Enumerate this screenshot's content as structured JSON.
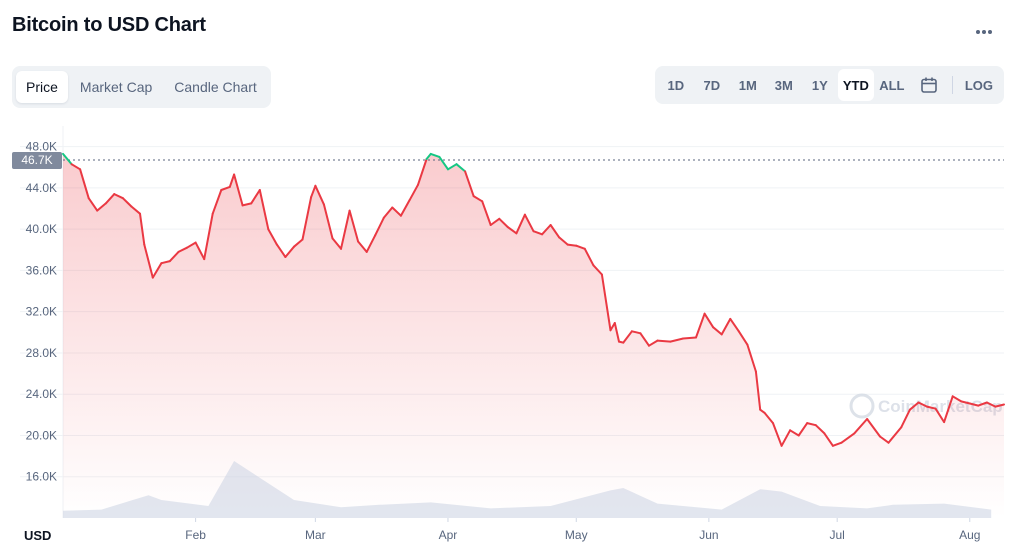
{
  "header": {
    "title": "Bitcoin to USD Chart",
    "more_icon": "more-horizontal-icon"
  },
  "tabs": [
    {
      "label": "Price",
      "active": true
    },
    {
      "label": "Market Cap",
      "active": false
    },
    {
      "label": "Candle Chart",
      "active": false
    }
  ],
  "ranges": [
    {
      "label": "1D",
      "active": false
    },
    {
      "label": "7D",
      "active": false
    },
    {
      "label": "1M",
      "active": false
    },
    {
      "label": "3M",
      "active": false
    },
    {
      "label": "1Y",
      "active": false
    },
    {
      "label": "YTD",
      "active": true
    },
    {
      "label": "ALL",
      "active": false
    }
  ],
  "calendar_icon": "calendar-icon",
  "log_label": "LOG",
  "watermark": "CoinMarketCap",
  "colors": {
    "line_down": "#ea3943",
    "line_up": "#16c784",
    "area_top": "#ea3943",
    "grid": "#eff2f5",
    "current_price_bg": "#808a9d",
    "volume": "#cfd6e4"
  },
  "chart_data": {
    "type": "line",
    "currency_label": "USD",
    "current_price_label": "46.7K",
    "current_price": 46700,
    "ylim": [
      12000,
      50000
    ],
    "y_ticks": [
      16000,
      20000,
      24000,
      28000,
      32000,
      36000,
      40000,
      44000,
      48000
    ],
    "y_tick_labels": [
      "16.0K",
      "20.0K",
      "24.0K",
      "28.0K",
      "32.0K",
      "36.0K",
      "40.0K",
      "44.0K",
      "48.0K"
    ],
    "x_range": [
      "2022-01-01",
      "2022-08-09"
    ],
    "x_ticks": [
      {
        "label": "Feb",
        "date": "2022-02-01"
      },
      {
        "label": "Mar",
        "date": "2022-03-01"
      },
      {
        "label": "Apr",
        "date": "2022-04-01"
      },
      {
        "label": "May",
        "date": "2022-05-01"
      },
      {
        "label": "Jun",
        "date": "2022-06-01"
      },
      {
        "label": "Jul",
        "date": "2022-07-01"
      },
      {
        "label": "Aug",
        "date": "2022-08-01"
      }
    ],
    "grid": true,
    "series": [
      {
        "dates": [
          "2022-01-01",
          "2022-01-03",
          "2022-01-05",
          "2022-01-07",
          "2022-01-09",
          "2022-01-11",
          "2022-01-13",
          "2022-01-15",
          "2022-01-17",
          "2022-01-19",
          "2022-01-20",
          "2022-01-22",
          "2022-01-24",
          "2022-01-26",
          "2022-01-28",
          "2022-01-30",
          "2022-02-01",
          "2022-02-03",
          "2022-02-05",
          "2022-02-07",
          "2022-02-09",
          "2022-02-10",
          "2022-02-12",
          "2022-02-14",
          "2022-02-16",
          "2022-02-18",
          "2022-02-20",
          "2022-02-22",
          "2022-02-24",
          "2022-02-26",
          "2022-02-28",
          "2022-03-01",
          "2022-03-03",
          "2022-03-05",
          "2022-03-07",
          "2022-03-09",
          "2022-03-11",
          "2022-03-13",
          "2022-03-15",
          "2022-03-17",
          "2022-03-19",
          "2022-03-21",
          "2022-03-23",
          "2022-03-25",
          "2022-03-27",
          "2022-03-28",
          "2022-03-30",
          "2022-04-01",
          "2022-04-03",
          "2022-04-05",
          "2022-04-07",
          "2022-04-09",
          "2022-04-11",
          "2022-04-13",
          "2022-04-15",
          "2022-04-17",
          "2022-04-19",
          "2022-04-21",
          "2022-04-23",
          "2022-04-25",
          "2022-04-27",
          "2022-04-29",
          "2022-05-01",
          "2022-05-03",
          "2022-05-05",
          "2022-05-07",
          "2022-05-09",
          "2022-05-10",
          "2022-05-11",
          "2022-05-12",
          "2022-05-14",
          "2022-05-16",
          "2022-05-18",
          "2022-05-20",
          "2022-05-23",
          "2022-05-26",
          "2022-05-29",
          "2022-05-31",
          "2022-06-02",
          "2022-06-04",
          "2022-06-06",
          "2022-06-08",
          "2022-06-10",
          "2022-06-12",
          "2022-06-13",
          "2022-06-14",
          "2022-06-16",
          "2022-06-18",
          "2022-06-20",
          "2022-06-22",
          "2022-06-24",
          "2022-06-26",
          "2022-06-28",
          "2022-06-30",
          "2022-07-02",
          "2022-07-05",
          "2022-07-08",
          "2022-07-11",
          "2022-07-13",
          "2022-07-16",
          "2022-07-18",
          "2022-07-20",
          "2022-07-22",
          "2022-07-24",
          "2022-07-26",
          "2022-07-28",
          "2022-07-30",
          "2022-08-01",
          "2022-08-03",
          "2022-08-05",
          "2022-08-07",
          "2022-08-09"
        ],
        "values": [
          47300,
          46300,
          45800,
          43000,
          41800,
          42500,
          43400,
          43000,
          42200,
          41500,
          38500,
          35300,
          36700,
          36900,
          37800,
          38200,
          38700,
          37100,
          41500,
          43800,
          44100,
          45300,
          42300,
          42500,
          43800,
          40000,
          38500,
          37300,
          38300,
          39000,
          43100,
          44200,
          42400,
          39100,
          38100,
          41800,
          38800,
          37800,
          39400,
          41100,
          42100,
          41300,
          42800,
          44300,
          46800,
          47300,
          47000,
          45800,
          46300,
          45600,
          43200,
          42700,
          40400,
          41000,
          40200,
          39600,
          41400,
          39800,
          39500,
          40400,
          39200,
          38500,
          38400,
          38100,
          36500,
          35600,
          30200,
          30900,
          29100,
          29000,
          30100,
          29900,
          28700,
          29200,
          29100,
          29400,
          29500,
          31800,
          30500,
          29800,
          31300,
          30100,
          28800,
          26200,
          22500,
          22200,
          21200,
          19000,
          20500,
          20000,
          21200,
          21000,
          20200,
          19000,
          19300,
          20200,
          21600,
          19900,
          19300,
          20800,
          22500,
          23200,
          22800,
          22600,
          21300,
          23800,
          23300,
          23100,
          22900,
          23200,
          22800,
          23000
        ]
      }
    ],
    "up_segments": [
      [
        "2022-01-01",
        "2022-01-03"
      ],
      [
        "2022-03-27",
        "2022-04-05"
      ]
    ],
    "volume": {
      "dates": [
        "2022-01-01",
        "2022-01-10",
        "2022-01-21",
        "2022-01-24",
        "2022-02-04",
        "2022-02-10",
        "2022-02-24",
        "2022-03-07",
        "2022-03-16",
        "2022-03-28",
        "2022-04-11",
        "2022-04-25",
        "2022-05-09",
        "2022-05-12",
        "2022-05-20",
        "2022-06-04",
        "2022-06-13",
        "2022-06-18",
        "2022-06-27",
        "2022-07-08",
        "2022-07-14",
        "2022-07-26",
        "2022-08-06"
      ],
      "values": [
        12,
        14,
        38,
        30,
        20,
        95,
        30,
        18,
        22,
        26,
        16,
        20,
        46,
        50,
        24,
        14,
        48,
        44,
        20,
        16,
        22,
        24,
        14
      ]
    }
  }
}
